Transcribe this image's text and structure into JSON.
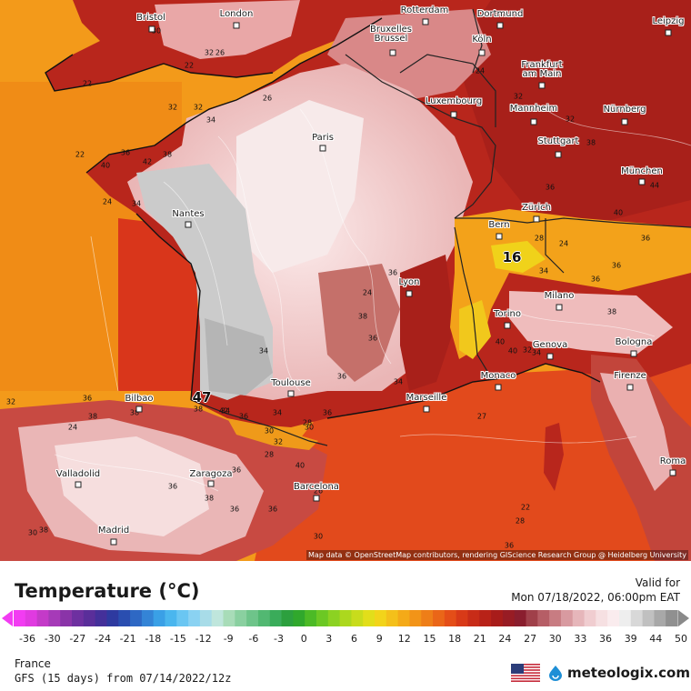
{
  "map": {
    "attribution": "Map data © OpenStreetMap contributors, rendering GIScience Research Group @ Heidelberg University",
    "cities": [
      {
        "name": "Bristol"
      },
      {
        "name": "London"
      },
      {
        "name": "Rotterdam"
      },
      {
        "name": "Dortmund"
      },
      {
        "name": "Leipzig"
      },
      {
        "name": "Bruxelles\nBrussel"
      },
      {
        "name": "Köln"
      },
      {
        "name": "Frankfurt\nam Main"
      },
      {
        "name": "Luxembourg"
      },
      {
        "name": "Mannheim"
      },
      {
        "name": "Nürnberg"
      },
      {
        "name": "Paris"
      },
      {
        "name": "Stuttgart"
      },
      {
        "name": "München"
      },
      {
        "name": "Nantes"
      },
      {
        "name": "Zürich"
      },
      {
        "name": "Bern"
      },
      {
        "name": "Lyon"
      },
      {
        "name": "Milano"
      },
      {
        "name": "Torino"
      },
      {
        "name": "Bologna"
      },
      {
        "name": "Genova"
      },
      {
        "name": "Toulouse"
      },
      {
        "name": "Monaco"
      },
      {
        "name": "Firenze"
      },
      {
        "name": "Bilbao"
      },
      {
        "name": "Marseille"
      },
      {
        "name": "Valladolid"
      },
      {
        "name": "Zaragoza"
      },
      {
        "name": "Barcelona"
      },
      {
        "name": "Roma"
      },
      {
        "name": "Madrid"
      }
    ],
    "contour_labels": [
      "30",
      "22",
      "32",
      "26",
      "32",
      "22",
      "26",
      "34",
      "36",
      "38",
      "40",
      "42",
      "32",
      "24",
      "22",
      "34",
      "24",
      "32",
      "32",
      "38",
      "36",
      "44",
      "40",
      "36",
      "36",
      "36",
      "24",
      "34",
      "28",
      "38",
      "38",
      "34",
      "36",
      "36",
      "36",
      "34",
      "28",
      "34",
      "36",
      "30",
      "32",
      "38",
      "36",
      "40",
      "36",
      "36",
      "32",
      "36",
      "38",
      "38",
      "24",
      "27",
      "28",
      "22",
      "34",
      "32",
      "40",
      "40",
      "42",
      "30",
      "36",
      "38",
      "34",
      "24",
      "28",
      "30",
      "30",
      "26",
      "36",
      "38",
      "36"
    ],
    "extreme_labels": [
      "47",
      "16"
    ],
    "colors": {
      "sea_orange": "#f39a1a",
      "land_deep_red": "#b8261c",
      "land_pink": "#f2c3c3",
      "land_grey": "#c8c8c8"
    }
  },
  "legend": {
    "title": "Temperature (°C)",
    "valid_label": "Valid for",
    "valid_time": "Mon 07/18/2022, 06:00pm EAT",
    "ticks": [
      "-36",
      "-30",
      "-27",
      "-24",
      "-21",
      "-18",
      "-15",
      "-12",
      "-9",
      "-6",
      "-3",
      "0",
      "3",
      "6",
      "9",
      "12",
      "15",
      "18",
      "21",
      "24",
      "27",
      "30",
      "33",
      "36",
      "39",
      "44",
      "50"
    ]
  },
  "footer": {
    "region": "France",
    "model": "GFS (15 days) from 07/14/2022/12z",
    "brand": "meteologix.com",
    "flag_icon": "us-flag-icon"
  }
}
